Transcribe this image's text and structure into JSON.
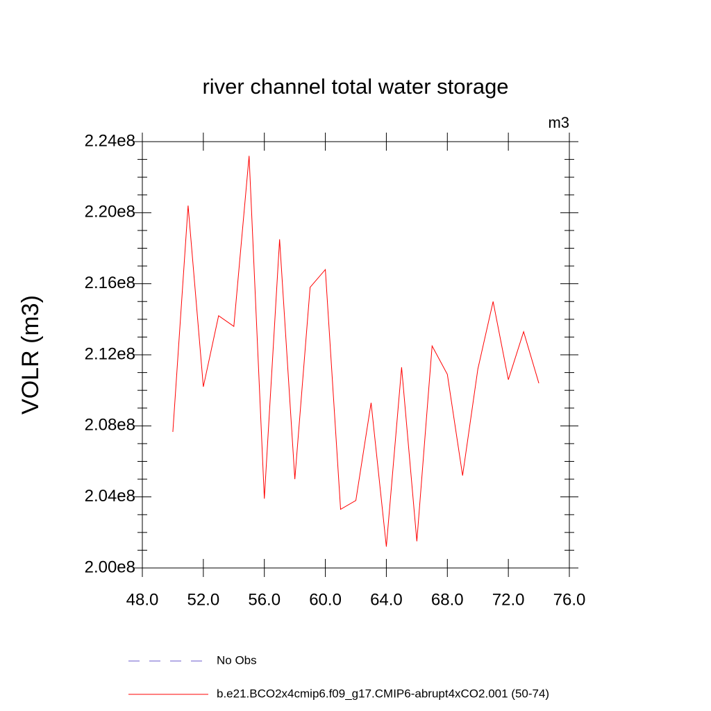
{
  "chart_data": {
    "type": "line",
    "title": "river channel total water storage",
    "units": "m3",
    "ylabel": "VOLR  (m3)",
    "x": [
      50,
      51,
      52,
      53,
      54,
      55,
      56,
      57,
      58,
      59,
      60,
      61,
      62,
      63,
      64,
      65,
      66,
      67,
      68,
      69,
      70,
      71,
      72,
      73,
      74
    ],
    "series": [
      {
        "name": "No Obs",
        "color": "#6a5acd",
        "dashed": true,
        "values": [
          null,
          null,
          null,
          null,
          null,
          null,
          null,
          null,
          null,
          null,
          null,
          null,
          null,
          null,
          null,
          null,
          null,
          null,
          null,
          null,
          null,
          null,
          null,
          null,
          null
        ]
      },
      {
        "name": "b.e21.BCO2x4cmip6.f09_g17.CMIP6-abrupt4xCO2.001 (50-74)",
        "color": "#ff0000",
        "dashed": false,
        "values": [
          207660000,
          220400000,
          210200000,
          214200000,
          213600000,
          223200000,
          203900000,
          218500000,
          205000000,
          215800000,
          216800000,
          203300000,
          203800000,
          209300000,
          201200000,
          211300000,
          201500000,
          212500000,
          210900000,
          205200000,
          211200000,
          215000000,
          210600000,
          213300000,
          210400000
        ]
      }
    ],
    "xlim": [
      48,
      76
    ],
    "xticks": [
      {
        "value": 48,
        "label": "48.0"
      },
      {
        "value": 52,
        "label": "52.0"
      },
      {
        "value": 56,
        "label": "56.0"
      },
      {
        "value": 60,
        "label": "60.0"
      },
      {
        "value": 64,
        "label": "64.0"
      },
      {
        "value": 68,
        "label": "68.0"
      },
      {
        "value": 72,
        "label": "72.0"
      },
      {
        "value": 76,
        "label": "76.0"
      }
    ],
    "ylim": [
      200000000,
      224000000
    ],
    "yticks": [
      {
        "value": 200000000,
        "label": "2.00e8"
      },
      {
        "value": 204000000,
        "label": "2.04e8"
      },
      {
        "value": 208000000,
        "label": "2.08e8"
      },
      {
        "value": 212000000,
        "label": "2.12e8"
      },
      {
        "value": 216000000,
        "label": "2.16e8"
      },
      {
        "value": 220000000,
        "label": "2.20e8"
      },
      {
        "value": 224000000,
        "label": "2.24e8"
      }
    ],
    "yminorticks": [
      201000000,
      202000000,
      203000000,
      205000000,
      206000000,
      207000000,
      209000000,
      210000000,
      211000000,
      213000000,
      214000000,
      215000000,
      217000000,
      218000000,
      219000000,
      221000000,
      222000000,
      223000000
    ],
    "grid": false
  }
}
